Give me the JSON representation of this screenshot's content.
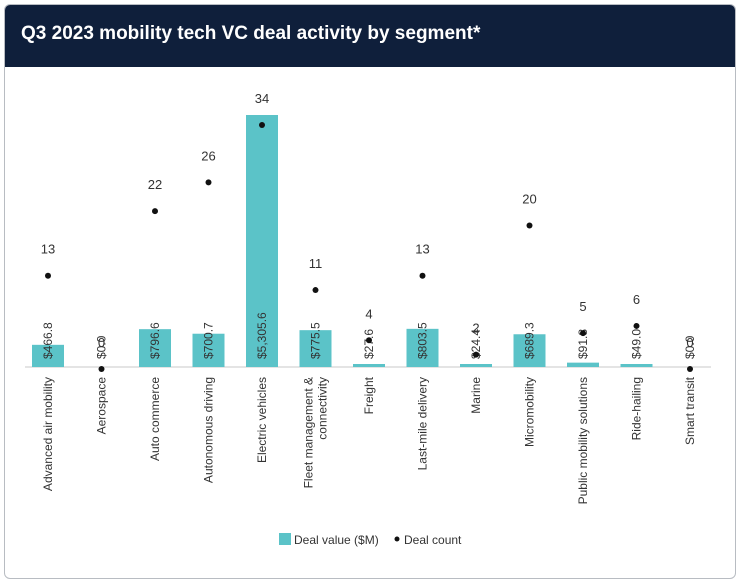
{
  "chart_data": {
    "type": "bar",
    "title": "Q3 2023 mobility tech VC deal activity by segment*",
    "categories": [
      "Advanced air mobility",
      "Aerospace",
      "Auto commerce",
      "Autonomous driving",
      "Electric vehicles",
      "Fleet management & connectivity",
      "Freight",
      "Last-mile delivery",
      "Marine",
      "Micromobility",
      "Public mobility solutions",
      "Ride-hailing",
      "Smart transit"
    ],
    "category_lines": [
      [
        "Advanced air mobility"
      ],
      [
        "Aerospace"
      ],
      [
        "Auto commerce"
      ],
      [
        "Autonomous driving"
      ],
      [
        "Electric vehicles"
      ],
      [
        "Fleet management &",
        "connectivity"
      ],
      [
        "Freight"
      ],
      [
        "Last-mile delivery"
      ],
      [
        "Marine"
      ],
      [
        "Micromobility"
      ],
      [
        "Public mobility solutions"
      ],
      [
        "Ride-hailing"
      ],
      [
        "Smart transit"
      ]
    ],
    "series": [
      {
        "name": "Deal value ($M)",
        "type": "bar",
        "color": "#5bc3c8",
        "values": [
          466.8,
          0.0,
          796.6,
          700.7,
          5305.6,
          775.5,
          27.6,
          803.5,
          24.4,
          689.3,
          91.8,
          49.0,
          0.0
        ],
        "labels": [
          "$466.8",
          "$0.0",
          "$796.6",
          "$700.7",
          "$5,305.6",
          "$775.5",
          "$27.6",
          "$803.5",
          "$24.4",
          "$689.3",
          "$91.8",
          "$49.0",
          "$0.0"
        ]
      },
      {
        "name": "Deal count",
        "type": "scatter",
        "color": "#111111",
        "values": [
          13,
          0,
          22,
          26,
          34,
          11,
          4,
          13,
          2,
          20,
          5,
          6,
          0
        ]
      }
    ],
    "value_ylim": [
      0,
      5305.6
    ],
    "count_ylim": [
      0,
      34
    ],
    "grid": false,
    "legend_position": "bottom-center"
  }
}
